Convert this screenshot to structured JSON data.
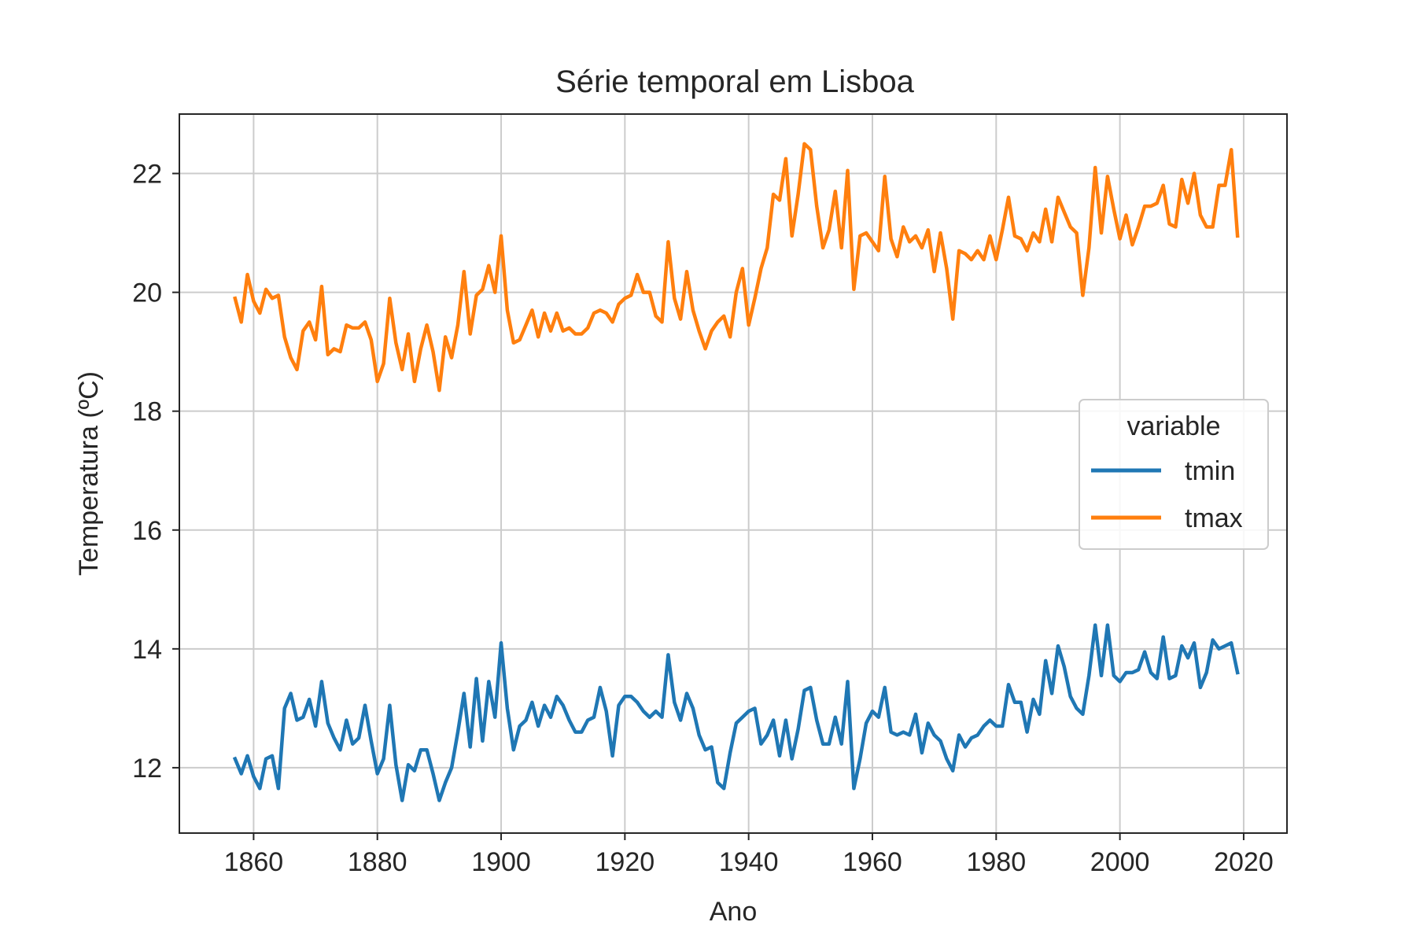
{
  "chart_data": {
    "type": "line",
    "title": "Série temporal em Lisboa",
    "xlabel": "Ano",
    "ylabel": "Temperatura (ºC)",
    "xlim": [
      1848,
      2027
    ],
    "ylim": [
      10.9,
      23.0
    ],
    "xticks": [
      1860,
      1880,
      1900,
      1920,
      1940,
      1960,
      1980,
      2000,
      2020
    ],
    "yticks": [
      12,
      14,
      16,
      18,
      20,
      22
    ],
    "grid": true,
    "legend": {
      "title": "variable",
      "placement": "center-right"
    },
    "x_start": 1857,
    "series": [
      {
        "name": "tmin",
        "color": "#1f77b4",
        "values": [
          12.15,
          11.9,
          12.2,
          11.85,
          11.65,
          12.15,
          12.2,
          11.65,
          13.0,
          13.25,
          12.8,
          12.85,
          13.15,
          12.7,
          13.45,
          12.75,
          12.5,
          12.3,
          12.8,
          12.4,
          12.5,
          13.05,
          12.45,
          11.9,
          12.15,
          13.05,
          12.05,
          11.45,
          12.05,
          11.95,
          12.3,
          12.3,
          11.9,
          11.45,
          11.75,
          12.0,
          12.6,
          13.25,
          12.35,
          13.5,
          12.45,
          13.45,
          12.85,
          14.1,
          13.0,
          12.3,
          12.7,
          12.8,
          13.1,
          12.7,
          13.05,
          12.85,
          13.2,
          13.05,
          12.8,
          12.6,
          12.6,
          12.8,
          12.85,
          13.35,
          12.95,
          12.2,
          13.05,
          13.2,
          13.2,
          13.1,
          12.95,
          12.85,
          12.95,
          12.85,
          13.9,
          13.1,
          12.8,
          13.25,
          13.0,
          12.55,
          12.3,
          12.35,
          11.75,
          11.65,
          12.25,
          12.75,
          12.85,
          12.95,
          13.0,
          12.4,
          12.55,
          12.8,
          12.2,
          12.8,
          12.15,
          12.65,
          13.3,
          13.35,
          12.8,
          12.4,
          12.4,
          12.85,
          12.4,
          13.45,
          11.65,
          12.15,
          12.75,
          12.95,
          12.85,
          13.35,
          12.6,
          12.55,
          12.6,
          12.55,
          12.9,
          12.25,
          12.75,
          12.55,
          12.45,
          12.15,
          11.95,
          12.55,
          12.35,
          12.5,
          12.55,
          12.7,
          12.8,
          12.7,
          12.7,
          13.4,
          13.1,
          13.1,
          12.6,
          13.15,
          12.9,
          13.8,
          13.25,
          14.05,
          13.7,
          13.2,
          13.0,
          12.9,
          13.55,
          14.4,
          13.55,
          14.4,
          13.55,
          13.45,
          13.6,
          13.6,
          13.65,
          13.95,
          13.6,
          13.5,
          14.2,
          13.5,
          13.55,
          14.05,
          13.85,
          14.1,
          13.35,
          13.6,
          14.15,
          14.0,
          14.05,
          14.1,
          13.6
        ]
      },
      {
        "name": "tmax",
        "color": "#ff7f0e",
        "values": [
          19.9,
          19.5,
          20.3,
          19.85,
          19.65,
          20.05,
          19.9,
          19.95,
          19.25,
          18.9,
          18.7,
          19.35,
          19.5,
          19.2,
          20.1,
          18.95,
          19.05,
          19.0,
          19.45,
          19.4,
          19.4,
          19.5,
          19.2,
          18.5,
          18.8,
          19.9,
          19.15,
          18.7,
          19.3,
          18.5,
          19.05,
          19.45,
          19.0,
          18.35,
          19.25,
          18.9,
          19.45,
          20.35,
          19.3,
          19.95,
          20.05,
          20.45,
          20.0,
          20.95,
          19.7,
          19.15,
          19.2,
          19.45,
          19.7,
          19.25,
          19.65,
          19.35,
          19.65,
          19.35,
          19.4,
          19.3,
          19.3,
          19.4,
          19.65,
          19.7,
          19.65,
          19.5,
          19.8,
          19.9,
          19.95,
          20.3,
          20.0,
          20.0,
          19.6,
          19.5,
          20.85,
          19.9,
          19.55,
          20.35,
          19.7,
          19.35,
          19.05,
          19.35,
          19.5,
          19.6,
          19.25,
          20.0,
          20.4,
          19.45,
          19.9,
          20.4,
          20.75,
          21.65,
          21.55,
          22.25,
          20.95,
          21.65,
          22.5,
          22.4,
          21.45,
          20.75,
          21.05,
          21.7,
          20.75,
          22.05,
          20.05,
          20.95,
          21.0,
          20.85,
          20.7,
          21.95,
          20.9,
          20.6,
          21.1,
          20.85,
          20.95,
          20.75,
          21.05,
          20.35,
          21.0,
          20.4,
          19.55,
          20.7,
          20.65,
          20.55,
          20.7,
          20.55,
          20.95,
          20.55,
          21.05,
          21.6,
          20.95,
          20.9,
          20.7,
          21.0,
          20.85,
          21.4,
          20.85,
          21.6,
          21.35,
          21.1,
          21.0,
          19.95,
          20.75,
          22.1,
          21.0,
          21.95,
          21.4,
          20.9,
          21.3,
          20.8,
          21.1,
          21.45,
          21.45,
          21.5,
          21.8,
          21.15,
          21.1,
          21.9,
          21.5,
          22.0,
          21.3,
          21.1,
          21.1,
          21.8,
          21.8,
          22.4,
          20.95
        ]
      }
    ]
  }
}
